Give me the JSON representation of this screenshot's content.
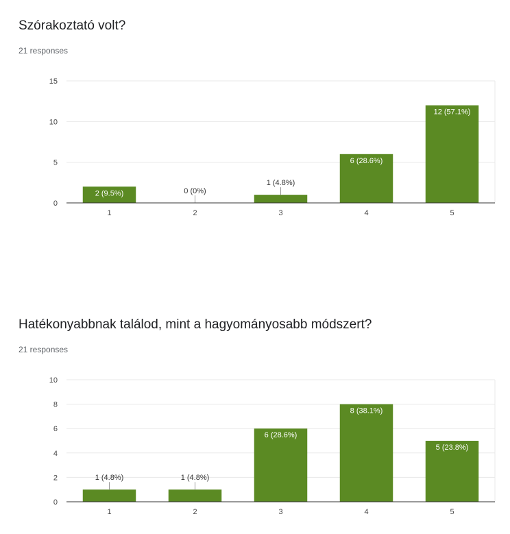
{
  "questions": [
    {
      "title": "Szórakoztató volt?",
      "responses": "21 responses"
    },
    {
      "title": "Hatékonyabbnak találod, mint a hagyományosabb módszert?",
      "responses": "21 responses"
    }
  ],
  "colors": {
    "bar": "#5b8a23",
    "grid": "#e8e8e8",
    "axis": "#333333",
    "tick_text": "#444444",
    "label_inside": "#ffffff",
    "label_outside": "#333333"
  },
  "chart_data": [
    {
      "type": "bar",
      "title": "Szórakoztató volt?",
      "categories": [
        "1",
        "2",
        "3",
        "4",
        "5"
      ],
      "values": [
        2,
        0,
        1,
        6,
        12
      ],
      "data_labels": [
        "2 (9.5%)",
        "0 (0%)",
        "1 (4.8%)",
        "6 (28.6%)",
        "12 (57.1%)"
      ],
      "ylim": [
        0,
        15
      ],
      "yticks": [
        0,
        5,
        10,
        15
      ],
      "grid": true
    },
    {
      "type": "bar",
      "title": "Hatékonyabbnak találod, mint a hagyományosabb módszert?",
      "categories": [
        "1",
        "2",
        "3",
        "4",
        "5"
      ],
      "values": [
        1,
        1,
        6,
        8,
        5
      ],
      "data_labels": [
        "1 (4.8%)",
        "1 (4.8%)",
        "6 (28.6%)",
        "8 (38.1%)",
        "5 (23.8%)"
      ],
      "ylim": [
        0,
        10
      ],
      "yticks": [
        0,
        2,
        4,
        6,
        8,
        10
      ],
      "grid": true
    }
  ]
}
